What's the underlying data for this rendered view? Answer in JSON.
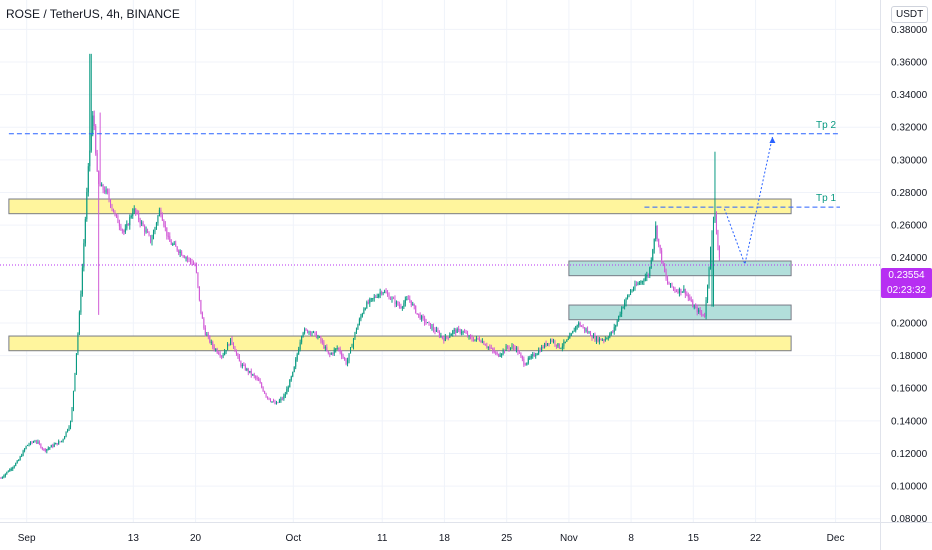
{
  "header": {
    "title": "ROSE / TetherUS, 4h, BINANCE",
    "currency": "USDT"
  },
  "last_price": {
    "value": "0.23554",
    "countdown": "02:23:32",
    "color": "#b72ff2"
  },
  "chart_data": {
    "type": "candlestick",
    "y_ticks": [
      "0.08000",
      "0.10000",
      "0.12000",
      "0.14000",
      "0.16000",
      "0.18000",
      "0.20000",
      "0.22000",
      "0.24000",
      "0.26000",
      "0.28000",
      "0.30000",
      "0.32000",
      "0.34000",
      "0.36000",
      "0.38000"
    ],
    "y_tick_values": [
      0.08,
      0.1,
      0.12,
      0.14,
      0.16,
      0.18,
      0.2,
      0.22,
      0.24,
      0.26,
      0.28,
      0.3,
      0.32,
      0.34,
      0.36,
      0.38
    ],
    "ylim": [
      0.078,
      0.398
    ],
    "x_ticks": [
      "Sep",
      "13",
      "20",
      "Oct",
      "11",
      "18",
      "25",
      "Nov",
      "8",
      "15",
      "22",
      "Dec"
    ],
    "x_tick_days": [
      0,
      12,
      19,
      30,
      40,
      47,
      54,
      61,
      68,
      75,
      82,
      91
    ],
    "xlim": [
      -3,
      96
    ],
    "up_color": "#089981",
    "down_color": "#d15ad6",
    "price_anchors": [
      [
        -2.9,
        0.105
      ],
      [
        -1,
        0.115
      ],
      [
        0,
        0.125
      ],
      [
        1,
        0.128
      ],
      [
        2,
        0.122
      ],
      [
        3,
        0.125
      ],
      [
        4,
        0.128
      ],
      [
        5,
        0.14
      ],
      [
        6,
        0.21
      ],
      [
        7,
        0.3
      ],
      [
        7.5,
        0.33
      ],
      [
        8,
        0.285
      ],
      [
        9,
        0.28
      ],
      [
        10,
        0.265
      ],
      [
        11,
        0.255
      ],
      [
        12,
        0.27
      ],
      [
        13,
        0.26
      ],
      [
        14,
        0.25
      ],
      [
        15,
        0.27
      ],
      [
        16,
        0.25
      ],
      [
        17,
        0.245
      ],
      [
        18,
        0.24
      ],
      [
        19,
        0.235
      ],
      [
        19.5,
        0.21
      ],
      [
        20,
        0.195
      ],
      [
        21,
        0.185
      ],
      [
        22,
        0.18
      ],
      [
        23,
        0.19
      ],
      [
        24,
        0.175
      ],
      [
        25,
        0.17
      ],
      [
        26,
        0.165
      ],
      [
        27,
        0.155
      ],
      [
        28,
        0.15
      ],
      [
        29,
        0.155
      ],
      [
        30,
        0.17
      ],
      [
        31,
        0.195
      ],
      [
        32,
        0.195
      ],
      [
        33,
        0.19
      ],
      [
        34,
        0.18
      ],
      [
        35,
        0.185
      ],
      [
        36,
        0.175
      ],
      [
        37,
        0.195
      ],
      [
        38,
        0.21
      ],
      [
        39,
        0.215
      ],
      [
        40,
        0.22
      ],
      [
        41,
        0.215
      ],
      [
        42,
        0.21
      ],
      [
        43,
        0.215
      ],
      [
        44,
        0.205
      ],
      [
        45,
        0.2
      ],
      [
        46,
        0.195
      ],
      [
        47,
        0.19
      ],
      [
        48,
        0.195
      ],
      [
        49,
        0.195
      ],
      [
        50,
        0.19
      ],
      [
        51,
        0.19
      ],
      [
        52,
        0.185
      ],
      [
        53,
        0.18
      ],
      [
        54,
        0.185
      ],
      [
        55,
        0.185
      ],
      [
        56,
        0.175
      ],
      [
        57,
        0.18
      ],
      [
        58,
        0.185
      ],
      [
        59,
        0.19
      ],
      [
        60,
        0.185
      ],
      [
        61,
        0.19
      ],
      [
        62,
        0.2
      ],
      [
        63,
        0.195
      ],
      [
        64,
        0.19
      ],
      [
        65,
        0.19
      ],
      [
        66,
        0.195
      ],
      [
        67,
        0.21
      ],
      [
        68,
        0.22
      ],
      [
        69,
        0.225
      ],
      [
        70,
        0.23
      ],
      [
        70.8,
        0.26
      ],
      [
        71,
        0.25
      ],
      [
        72,
        0.225
      ],
      [
        73,
        0.22
      ],
      [
        74,
        0.22
      ],
      [
        75,
        0.21
      ],
      [
        76,
        0.205
      ],
      [
        76.3,
        0.205
      ],
      [
        77,
        0.25
      ],
      [
        77.4,
        0.27
      ],
      [
        77.8,
        0.245
      ],
      [
        78,
        0.23554
      ]
    ],
    "annotations": [
      {
        "kind": "zone",
        "from": -2,
        "to": 86,
        "y0": 0.267,
        "y1": 0.276,
        "fill": "#fff59d"
      },
      {
        "kind": "zone",
        "from": -2,
        "to": 86,
        "y0": 0.183,
        "y1": 0.192,
        "fill": "#fff59d"
      },
      {
        "kind": "zone",
        "from": 61,
        "to": 86,
        "y0": 0.229,
        "y1": 0.238,
        "fill": "#b2dfdb"
      },
      {
        "kind": "zone",
        "from": 61,
        "to": 86,
        "y0": 0.202,
        "y1": 0.211,
        "fill": "#b2dfdb"
      },
      {
        "kind": "hline",
        "from": -2,
        "to": 91.5,
        "y": 0.316,
        "label": "Tp 2",
        "color": "#2962ff"
      },
      {
        "kind": "hline",
        "from": 69.5,
        "to": 91.5,
        "y": 0.271,
        "label": "Tp 1",
        "color": "#2962ff"
      },
      {
        "kind": "path",
        "points": [
          [
            78.5,
            0.27
          ],
          [
            80.8,
            0.236
          ],
          [
            83.9,
            0.314
          ]
        ],
        "color": "#2962ff"
      }
    ]
  }
}
